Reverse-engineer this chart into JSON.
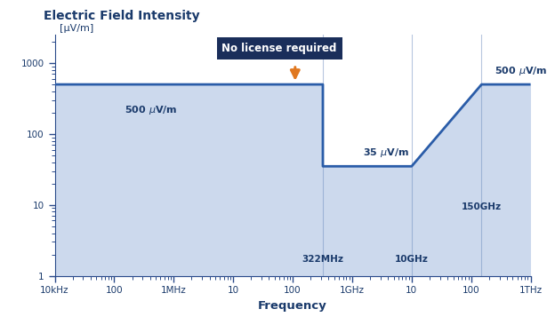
{
  "title": "Electric Field Intensity",
  "ylabel": "[μV/m]",
  "xlabel": "Frequency",
  "title_color": "#1a3a6b",
  "axis_color": "#2a4a8a",
  "line_color": "#2a5ca8",
  "fill_color": "#ccd9ed",
  "annotation_box_color": "#1a2e5a",
  "annotation_text": "No license required",
  "annotation_text_color": "white",
  "arrow_color": "#e07820",
  "label_color": "#1a3a6b",
  "vline_color": "#7090c0",
  "xmin": 10000,
  "xmax": 1000000000000,
  "ymin": 1,
  "ymax": 2500,
  "x_ticks": [
    10000,
    100000,
    1000000,
    10000000,
    100000000,
    1000000000,
    10000000000,
    100000000000,
    1000000000000
  ],
  "x_tick_labels": [
    "10kHz",
    "100",
    "1MHz",
    "10",
    "100",
    "1GHz",
    "10",
    "100",
    "1THz"
  ],
  "y_ticks": [
    1,
    10,
    100,
    1000
  ],
  "step_x": [
    10000,
    322000000,
    322000000,
    1000000000,
    10000000000,
    150000000000,
    1000000000000
  ],
  "step_y": [
    500,
    500,
    35,
    35,
    35,
    500,
    500
  ],
  "vlines": [
    322000000,
    10000000000,
    150000000000
  ]
}
